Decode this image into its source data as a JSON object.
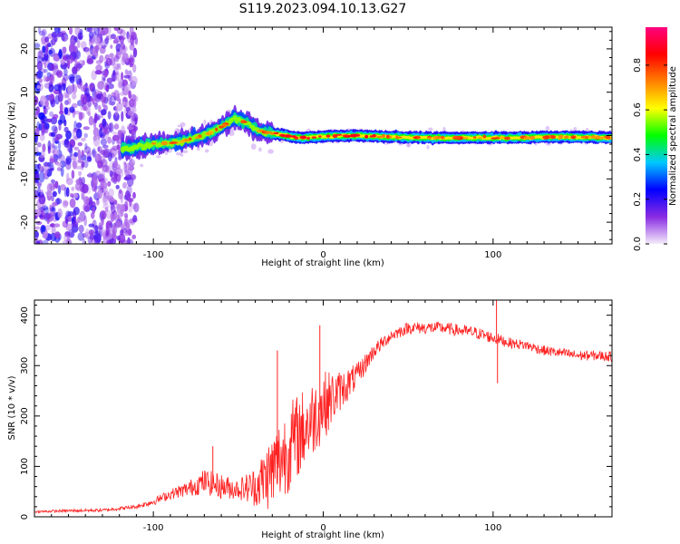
{
  "title": "S119.2023.094.10.13.G27",
  "chart_data": [
    {
      "type": "heatmap",
      "xlabel": "Height of straight line (km)",
      "ylabel": "Frequency (Hz)",
      "xlim": [
        -170,
        170
      ],
      "ylim": [
        -25,
        25
      ],
      "x_ticks": [
        -100,
        0,
        100
      ],
      "y_ticks": [
        -20,
        -10,
        0,
        10,
        20
      ],
      "colorbar": {
        "label": "Normalized spectral amplitude",
        "range": [
          0,
          0.97
        ],
        "ticks": [
          0.0,
          0.2,
          0.4,
          0.6,
          0.8
        ],
        "colors": [
          "#f4ecfb",
          "#8a2be2",
          "#0000ff",
          "#00c8ff",
          "#00ff00",
          "#ffff00",
          "#ff8000",
          "#ff0000",
          "#ff0080"
        ]
      },
      "ridge": {
        "x": [
          -115,
          -100,
          -85,
          -70,
          -60,
          -52,
          -45,
          -38,
          -30,
          -22,
          -15,
          -10,
          0,
          20,
          50,
          80,
          110,
          140,
          170
        ],
        "y": [
          -3,
          -2,
          -1.5,
          0,
          2,
          4,
          3,
          1,
          0.5,
          0,
          -0.5,
          -0.5,
          -0.2,
          0,
          -0.5,
          -0.5,
          -0.5,
          -0.3,
          -0.5
        ]
      }
    },
    {
      "type": "line",
      "xlabel": "Height of straight line (km)",
      "ylabel": "SNR (10 * v/v)",
      "xlim": [
        -170,
        170
      ],
      "ylim": [
        0,
        430
      ],
      "x_ticks": [
        -100,
        0,
        100
      ],
      "y_ticks": [
        0,
        100,
        200,
        300,
        400
      ],
      "color": "#ff2020",
      "series": [
        {
          "x": [
            -170,
            -150,
            -130,
            -110,
            -100,
            -90,
            -80,
            -70,
            -60,
            -50,
            -40,
            -30,
            -20,
            -10,
            0,
            10,
            20,
            30,
            40,
            50,
            60,
            70,
            80,
            90,
            100,
            110,
            120,
            130,
            140,
            150,
            160,
            170
          ],
          "values": [
            10,
            12,
            13,
            20,
            30,
            45,
            55,
            70,
            60,
            55,
            60,
            90,
            140,
            180,
            220,
            250,
            280,
            330,
            360,
            375,
            375,
            375,
            370,
            365,
            355,
            345,
            340,
            330,
            325,
            320,
            320,
            318
          ],
          "noise": [
            2,
            3,
            3,
            4,
            7,
            10,
            15,
            25,
            25,
            20,
            40,
            80,
            90,
            80,
            70,
            40,
            25,
            15,
            12,
            12,
            12,
            12,
            12,
            12,
            12,
            10,
            10,
            10,
            10,
            10,
            10,
            10
          ]
        }
      ],
      "spikes": [
        {
          "x": -65,
          "value": 140
        },
        {
          "x": -27,
          "value": 330
        },
        {
          "x": -2,
          "value": 380
        },
        {
          "x": 102,
          "value": 430
        },
        {
          "x": 102.6,
          "value": 265
        }
      ]
    }
  ]
}
